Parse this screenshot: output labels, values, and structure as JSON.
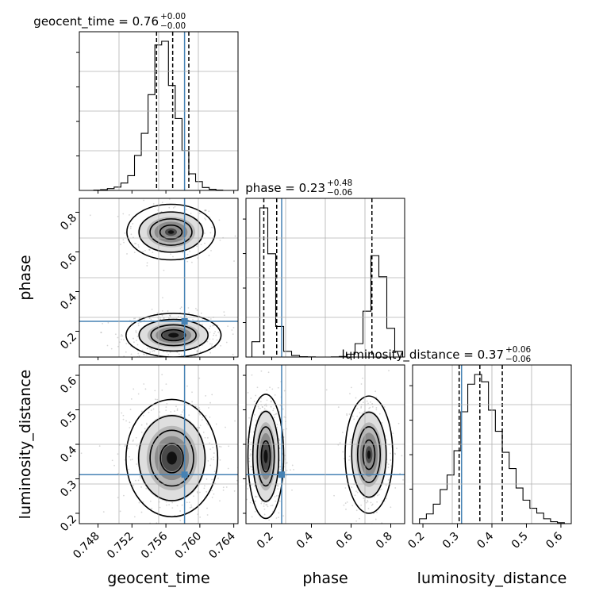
{
  "chart_data": {
    "type": "corner",
    "parameters": [
      "geocent_time",
      "phase",
      "luminosity_distance"
    ],
    "axis_labels": {
      "geocent_time": "geocent_time",
      "phase": "phase",
      "luminosity_distance": "luminosity_distance"
    },
    "ranges": {
      "geocent_time": [
        0.7458,
        0.7645
      ],
      "phase": [
        0.07,
        0.87
      ],
      "luminosity_distance": [
        0.17,
        0.63
      ]
    },
    "ticks": {
      "geocent_time": [
        "0.748",
        "0.752",
        "0.756",
        "0.760",
        "0.764"
      ],
      "phase": [
        "0.2",
        "0.4",
        "0.6",
        "0.8"
      ],
      "luminosity_distance": [
        "0.2",
        "0.3",
        "0.4",
        "0.5",
        "0.6"
      ]
    },
    "truths": {
      "geocent_time": 0.7582,
      "phase": 0.25,
      "luminosity_distance": 0.312
    },
    "truth_color": "#4682b4",
    "titles": [
      {
        "param": "geocent_time",
        "name": "geocent_time",
        "value": "0.76",
        "plus": "+0.00",
        "minus": "−0.00"
      },
      {
        "param": "phase",
        "name": "phase",
        "value": "0.23",
        "plus": "+0.48",
        "minus": "−0.06"
      },
      {
        "param": "luminosity_distance",
        "name": "luminosity_distance",
        "value": "0.37",
        "plus": "+0.06",
        "minus": "−0.06"
      }
    ],
    "quantiles": {
      "geocent_time": [
        0.7549,
        0.7568,
        0.7587
      ],
      "phase": [
        0.16,
        0.225,
        0.705
      ],
      "luminosity_distance": [
        0.305,
        0.365,
        0.43
      ]
    },
    "histograms": {
      "geocent_time": {
        "edges": [
          0.7475,
          0.7483,
          0.7491,
          0.7499,
          0.7507,
          0.7515,
          0.7523,
          0.7531,
          0.7539,
          0.7547,
          0.7555,
          0.7563,
          0.7571,
          0.7579,
          0.7587,
          0.7595,
          0.7603,
          0.7611,
          0.7619,
          0.7627
        ],
        "counts": [
          1,
          2,
          5,
          9,
          20,
          40,
          95,
          155,
          260,
          395,
          405,
          285,
          195,
          108,
          45,
          24,
          8,
          3,
          1
        ]
      },
      "phase": {
        "edges": [
          0.1,
          0.14,
          0.18,
          0.22,
          0.26,
          0.3,
          0.34,
          0.38,
          0.42,
          0.46,
          0.5,
          0.54,
          0.58,
          0.62,
          0.66,
          0.7,
          0.74,
          0.78,
          0.82,
          0.86
        ],
        "counts": [
          80,
          780,
          540,
          160,
          30,
          8,
          2,
          1,
          0,
          0,
          1,
          3,
          15,
          70,
          240,
          530,
          420,
          150,
          30
        ]
      },
      "luminosity_distance": {
        "edges": [
          0.19,
          0.21,
          0.23,
          0.25,
          0.27,
          0.29,
          0.31,
          0.33,
          0.35,
          0.37,
          0.39,
          0.41,
          0.43,
          0.45,
          0.47,
          0.49,
          0.51,
          0.53,
          0.55,
          0.57,
          0.59,
          0.61
        ],
        "counts": [
          30,
          60,
          120,
          210,
          300,
          450,
          690,
          860,
          920,
          875,
          700,
          570,
          440,
          340,
          220,
          145,
          95,
          65,
          30,
          12,
          6
        ]
      }
    },
    "contours_2d": {
      "phase_vs_geocent_time": {
        "modes": [
          {
            "cx": 0.7566,
            "cy": 0.7,
            "rx": 0.0026,
            "ry": 0.07,
            "weight": 0.45
          },
          {
            "cx": 0.7569,
            "cy": 0.18,
            "rx": 0.0028,
            "ry": 0.055,
            "weight": 1.0
          }
        ]
      },
      "luminosity_distance_vs_geocent_time": {
        "modes": [
          {
            "cx": 0.7567,
            "cy": 0.36,
            "rx": 0.0027,
            "ry": 0.085,
            "weight": 1.0
          }
        ]
      },
      "luminosity_distance_vs_phase": {
        "modes": [
          {
            "cx": 0.17,
            "cy": 0.365,
            "rx": 0.045,
            "ry": 0.09,
            "weight": 1.0
          },
          {
            "cx": 0.69,
            "cy": 0.37,
            "rx": 0.06,
            "ry": 0.085,
            "weight": 0.65
          }
        ]
      }
    }
  }
}
